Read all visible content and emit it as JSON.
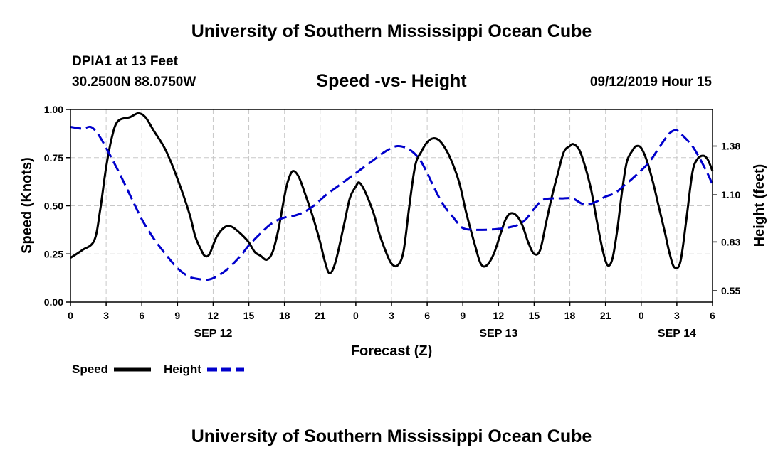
{
  "header": {
    "title": "University of Southern Mississippi Ocean Cube",
    "station": "DPIA1 at 13 Feet",
    "coords": "30.2500N 88.0750W",
    "subtitle": "Speed -vs- Height",
    "timestamp": "09/12/2019 Hour 15"
  },
  "footer": {
    "title": "University of Southern Mississippi Ocean Cube"
  },
  "legend": {
    "speed_label": "Speed",
    "height_label": "Height"
  },
  "colors": {
    "speed": "#000000",
    "height": "#0000cc",
    "grid": "#c8c8c8"
  },
  "chart_data": {
    "type": "line",
    "title": "Speed -vs- Height",
    "xlabel": "Forecast (Z)",
    "ylabel": "Speed (Knots)",
    "y2label": "Height (feet)",
    "x_unit": "hours since SEP 12 00Z",
    "xlim": [
      0,
      54
    ],
    "ylim": [
      0,
      1
    ],
    "y2lim": [
      0.485,
      1.59
    ],
    "grid": true,
    "legend_position": "bottom-left",
    "x_ticks": [
      {
        "x": 0,
        "label": "0"
      },
      {
        "x": 3,
        "label": "3"
      },
      {
        "x": 6,
        "label": "6"
      },
      {
        "x": 9,
        "label": "9"
      },
      {
        "x": 12,
        "label": "12"
      },
      {
        "x": 15,
        "label": "15"
      },
      {
        "x": 18,
        "label": "18"
      },
      {
        "x": 21,
        "label": "21"
      },
      {
        "x": 24,
        "label": "0"
      },
      {
        "x": 27,
        "label": "3"
      },
      {
        "x": 30,
        "label": "6"
      },
      {
        "x": 33,
        "label": "9"
      },
      {
        "x": 36,
        "label": "12"
      },
      {
        "x": 39,
        "label": "15"
      },
      {
        "x": 42,
        "label": "18"
      },
      {
        "x": 45,
        "label": "21"
      },
      {
        "x": 48,
        "label": "0"
      },
      {
        "x": 51,
        "label": "3"
      },
      {
        "x": 54,
        "label": "6"
      }
    ],
    "date_labels": [
      {
        "x": 12,
        "label": "SEP 12"
      },
      {
        "x": 36,
        "label": "SEP 13"
      },
      {
        "x": 51,
        "label": "SEP 14"
      }
    ],
    "y_ticks": [
      {
        "y": 0.0,
        "label": "0.00"
      },
      {
        "y": 0.25,
        "label": "0.25"
      },
      {
        "y": 0.5,
        "label": "0.50"
      },
      {
        "y": 0.75,
        "label": "0.75"
      },
      {
        "y": 1.0,
        "label": "1.00"
      }
    ],
    "y2_ticks": [
      {
        "y": 0.55,
        "label": "0.55"
      },
      {
        "y": 0.83,
        "label": "0.83"
      },
      {
        "y": 1.1,
        "label": "1.10"
      },
      {
        "y": 1.38,
        "label": "1.38"
      }
    ],
    "series": [
      {
        "name": "Speed",
        "axis": "left",
        "style": "solid",
        "points": [
          [
            0,
            0.23
          ],
          [
            1,
            0.27
          ],
          [
            2,
            0.32
          ],
          [
            2.5,
            0.48
          ],
          [
            3,
            0.7
          ],
          [
            3.5,
            0.86
          ],
          [
            4,
            0.94
          ],
          [
            5,
            0.96
          ],
          [
            5.7,
            0.98
          ],
          [
            6.3,
            0.96
          ],
          [
            7,
            0.89
          ],
          [
            8,
            0.79
          ],
          [
            9,
            0.64
          ],
          [
            10,
            0.46
          ],
          [
            10.5,
            0.34
          ],
          [
            11,
            0.27
          ],
          [
            11.3,
            0.24
          ],
          [
            11.7,
            0.25
          ],
          [
            12.3,
            0.34
          ],
          [
            13,
            0.39
          ],
          [
            13.6,
            0.39
          ],
          [
            14.4,
            0.35
          ],
          [
            15,
            0.31
          ],
          [
            15.5,
            0.26
          ],
          [
            16,
            0.24
          ],
          [
            16.5,
            0.22
          ],
          [
            17,
            0.26
          ],
          [
            17.5,
            0.38
          ],
          [
            18,
            0.55
          ],
          [
            18.3,
            0.63
          ],
          [
            18.7,
            0.68
          ],
          [
            19.2,
            0.65
          ],
          [
            19.8,
            0.55
          ],
          [
            20.4,
            0.44
          ],
          [
            21,
            0.31
          ],
          [
            21.4,
            0.21
          ],
          [
            21.8,
            0.15
          ],
          [
            22.3,
            0.21
          ],
          [
            23,
            0.4
          ],
          [
            23.5,
            0.54
          ],
          [
            24,
            0.6
          ],
          [
            24.3,
            0.62
          ],
          [
            24.8,
            0.57
          ],
          [
            25.5,
            0.46
          ],
          [
            26,
            0.35
          ],
          [
            26.6,
            0.25
          ],
          [
            27,
            0.2
          ],
          [
            27.5,
            0.19
          ],
          [
            28,
            0.26
          ],
          [
            28.5,
            0.5
          ],
          [
            29,
            0.71
          ],
          [
            29.5,
            0.78
          ],
          [
            30,
            0.83
          ],
          [
            30.5,
            0.85
          ],
          [
            31,
            0.84
          ],
          [
            31.5,
            0.8
          ],
          [
            32,
            0.74
          ],
          [
            32.7,
            0.62
          ],
          [
            33.3,
            0.46
          ],
          [
            34,
            0.3
          ],
          [
            34.5,
            0.2
          ],
          [
            35,
            0.19
          ],
          [
            35.6,
            0.25
          ],
          [
            36.2,
            0.36
          ],
          [
            36.6,
            0.43
          ],
          [
            37,
            0.46
          ],
          [
            37.5,
            0.45
          ],
          [
            38,
            0.4
          ],
          [
            38.5,
            0.31
          ],
          [
            39,
            0.25
          ],
          [
            39.5,
            0.27
          ],
          [
            40,
            0.41
          ],
          [
            40.5,
            0.55
          ],
          [
            41,
            0.67
          ],
          [
            41.5,
            0.78
          ],
          [
            42,
            0.81
          ],
          [
            42.3,
            0.82
          ],
          [
            42.8,
            0.79
          ],
          [
            43.3,
            0.7
          ],
          [
            43.8,
            0.58
          ],
          [
            44.3,
            0.41
          ],
          [
            44.8,
            0.26
          ],
          [
            45.2,
            0.19
          ],
          [
            45.6,
            0.23
          ],
          [
            46,
            0.38
          ],
          [
            46.4,
            0.58
          ],
          [
            46.8,
            0.73
          ],
          [
            47.3,
            0.79
          ],
          [
            47.6,
            0.81
          ],
          [
            48,
            0.8
          ],
          [
            48.5,
            0.73
          ],
          [
            49,
            0.62
          ],
          [
            49.5,
            0.49
          ],
          [
            50,
            0.36
          ],
          [
            50.4,
            0.25
          ],
          [
            50.8,
            0.18
          ],
          [
            51.3,
            0.21
          ],
          [
            51.8,
            0.43
          ],
          [
            52.3,
            0.67
          ],
          [
            52.7,
            0.74
          ],
          [
            53.2,
            0.76
          ],
          [
            53.6,
            0.74
          ],
          [
            54,
            0.68
          ]
        ]
      },
      {
        "name": "Height",
        "axis": "right",
        "style": "dashed",
        "points": [
          [
            0,
            1.49
          ],
          [
            1,
            1.48
          ],
          [
            1.7,
            1.49
          ],
          [
            2.3,
            1.45
          ],
          [
            3,
            1.37
          ],
          [
            4,
            1.24
          ],
          [
            5,
            1.1
          ],
          [
            6,
            0.96
          ],
          [
            7,
            0.85
          ],
          [
            8,
            0.76
          ],
          [
            9,
            0.68
          ],
          [
            10,
            0.63
          ],
          [
            11,
            0.615
          ],
          [
            11.7,
            0.615
          ],
          [
            12.5,
            0.64
          ],
          [
            13.3,
            0.68
          ],
          [
            14.3,
            0.75
          ],
          [
            15,
            0.81
          ],
          [
            16,
            0.88
          ],
          [
            17,
            0.94
          ],
          [
            18,
            0.97
          ],
          [
            18.8,
            0.98
          ],
          [
            19.6,
            1.0
          ],
          [
            20.5,
            1.04
          ],
          [
            21.5,
            1.1
          ],
          [
            22.5,
            1.15
          ],
          [
            23.5,
            1.2
          ],
          [
            24.5,
            1.25
          ],
          [
            25.5,
            1.3
          ],
          [
            26.5,
            1.35
          ],
          [
            27.5,
            1.38
          ],
          [
            28.5,
            1.36
          ],
          [
            29.3,
            1.31
          ],
          [
            29.9,
            1.24
          ],
          [
            30.6,
            1.14
          ],
          [
            31.3,
            1.05
          ],
          [
            32.2,
            0.97
          ],
          [
            33,
            0.91
          ],
          [
            34,
            0.9
          ],
          [
            35,
            0.9
          ],
          [
            36,
            0.905
          ],
          [
            37,
            0.915
          ],
          [
            37.7,
            0.93
          ],
          [
            38.3,
            0.96
          ],
          [
            39,
            1.02
          ],
          [
            39.7,
            1.07
          ],
          [
            40.5,
            1.08
          ],
          [
            41.3,
            1.08
          ],
          [
            42.2,
            1.08
          ],
          [
            43,
            1.05
          ],
          [
            43.5,
            1.045
          ],
          [
            44.2,
            1.06
          ],
          [
            45,
            1.09
          ],
          [
            45.8,
            1.11
          ],
          [
            46.5,
            1.15
          ],
          [
            47.2,
            1.19
          ],
          [
            48,
            1.24
          ],
          [
            48.7,
            1.29
          ],
          [
            49.4,
            1.36
          ],
          [
            50,
            1.42
          ],
          [
            50.5,
            1.46
          ],
          [
            51,
            1.47
          ],
          [
            51.5,
            1.44
          ],
          [
            52.3,
            1.38
          ],
          [
            53,
            1.3
          ],
          [
            53.6,
            1.22
          ],
          [
            54,
            1.16
          ]
        ]
      }
    ]
  }
}
